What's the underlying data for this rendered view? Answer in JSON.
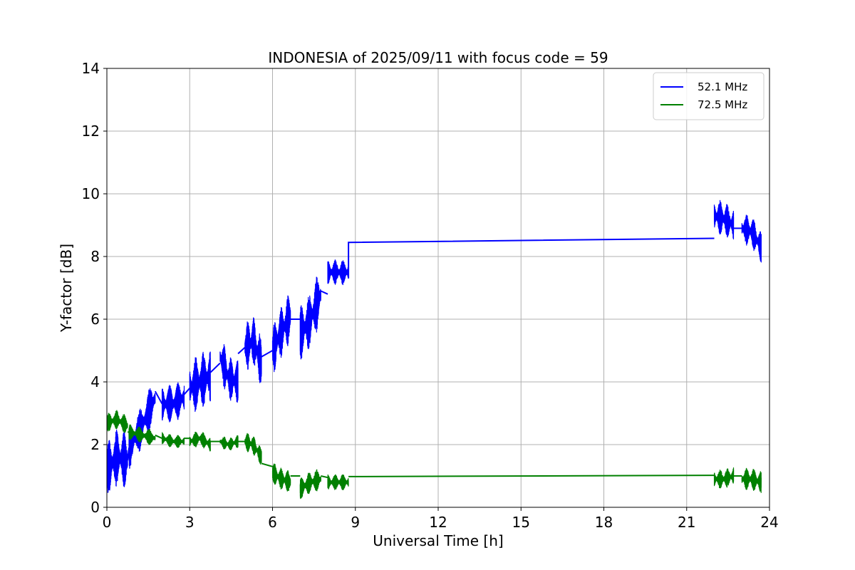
{
  "chart_data": {
    "type": "line",
    "title": "INDONESIA of 2025/09/11 with focus code = 59",
    "xlabel": "Universal Time [h]",
    "ylabel": "Y-factor [dB]",
    "xlim": [
      0,
      24
    ],
    "ylim": [
      0,
      14
    ],
    "xticks": [
      0,
      3,
      6,
      9,
      12,
      15,
      18,
      21,
      24
    ],
    "yticks": [
      0,
      2,
      4,
      6,
      8,
      10,
      12,
      14
    ],
    "xtick_labels": [
      "0",
      "3",
      "6",
      "9",
      "12",
      "15",
      "18",
      "21",
      "24"
    ],
    "ytick_labels": [
      "0",
      "2",
      "4",
      "6",
      "8",
      "10",
      "12",
      "14"
    ],
    "grid": true,
    "legend_position": "top-right",
    "series": [
      {
        "name": "52.1 MHz",
        "color": "#0000ff",
        "segments": [
          {
            "t0": 0.0,
            "t1": 0.75,
            "center": [
              1.2,
              1.6,
              1.5
            ],
            "amp": 0.9
          },
          {
            "t0": 0.8,
            "t1": 1.75,
            "center": [
              1.9,
              2.6,
              3.5
            ],
            "amp": 0.7
          },
          {
            "t0": 2.0,
            "t1": 2.8,
            "center": [
              3.3,
              3.3,
              3.5
            ],
            "amp": 0.6
          },
          {
            "t0": 3.0,
            "t1": 3.75,
            "center": [
              3.8,
              4.0,
              4.2
            ],
            "amp": 0.9
          },
          {
            "t0": 4.1,
            "t1": 4.75,
            "center": [
              4.8,
              4.1,
              4.0
            ],
            "amp": 0.7
          },
          {
            "t0": 5.0,
            "t1": 5.6,
            "center": [
              5.1,
              5.3,
              4.6
            ],
            "amp": 0.8
          },
          {
            "t0": 6.0,
            "t1": 6.65,
            "center": [
              5.0,
              5.6,
              6.1
            ],
            "amp": 0.8
          },
          {
            "t0": 7.0,
            "t1": 7.75,
            "center": [
              5.5,
              6.0,
              6.8
            ],
            "amp": 0.9
          },
          {
            "t0": 8.0,
            "t1": 8.75,
            "center": [
              7.5,
              7.5,
              7.5
            ],
            "amp": 0.4
          },
          {
            "t0": 22.0,
            "t1": 22.7,
            "center": [
              9.3,
              9.2,
              9.0
            ],
            "amp": 0.55
          },
          {
            "t0": 23.0,
            "t1": 23.7,
            "center": [
              8.9,
              8.8,
              8.3
            ],
            "amp": 0.5
          }
        ],
        "bridges": [
          {
            "x": [
              0.75,
              0.8
            ],
            "y": [
              1.5,
              1.9
            ]
          },
          {
            "x": [
              1.75,
              2.0
            ],
            "y": [
              3.7,
              3.3
            ]
          },
          {
            "x": [
              2.8,
              3.0
            ],
            "y": [
              3.6,
              3.8
            ]
          },
          {
            "x": [
              3.75,
              4.1
            ],
            "y": [
              4.3,
              4.6
            ]
          },
          {
            "x": [
              4.75,
              5.0
            ],
            "y": [
              4.9,
              5.1
            ]
          },
          {
            "x": [
              5.6,
              6.0
            ],
            "y": [
              4.8,
              5.0
            ]
          },
          {
            "x": [
              6.65,
              7.0
            ],
            "y": [
              6.0,
              6.0
            ]
          },
          {
            "x": [
              7.75,
              8.0
            ],
            "y": [
              6.9,
              6.8
            ]
          },
          {
            "x": [
              8.75,
              8.75,
              22.0
            ],
            "y": [
              7.3,
              8.45,
              8.58
            ]
          },
          {
            "x": [
              22.7,
              23.0
            ],
            "y": [
              8.9,
              8.9
            ]
          }
        ]
      },
      {
        "name": "72.5 MHz",
        "color": "#008000",
        "segments": [
          {
            "t0": 0.0,
            "t1": 0.75,
            "center": [
              2.7,
              2.8,
              2.6
            ],
            "amp": 0.3
          },
          {
            "t0": 0.8,
            "t1": 1.75,
            "center": [
              2.4,
              2.3,
              2.2
            ],
            "amp": 0.25
          },
          {
            "t0": 2.0,
            "t1": 2.8,
            "center": [
              2.2,
              2.1,
              2.1
            ],
            "amp": 0.2
          },
          {
            "t0": 3.0,
            "t1": 3.75,
            "center": [
              2.1,
              2.2,
              2.0
            ],
            "amp": 0.25
          },
          {
            "t0": 4.1,
            "t1": 4.75,
            "center": [
              2.1,
              2.0,
              2.1
            ],
            "amp": 0.2
          },
          {
            "t0": 5.0,
            "t1": 5.6,
            "center": [
              2.1,
              2.0,
              1.6
            ],
            "amp": 0.3
          },
          {
            "t0": 6.0,
            "t1": 6.65,
            "center": [
              1.1,
              0.9,
              0.8
            ],
            "amp": 0.35
          },
          {
            "t0": 7.0,
            "t1": 7.75,
            "center": [
              0.6,
              0.8,
              0.9
            ],
            "amp": 0.35
          },
          {
            "t0": 8.0,
            "t1": 8.75,
            "center": [
              0.8,
              0.8,
              0.8
            ],
            "amp": 0.25
          },
          {
            "t0": 22.0,
            "t1": 22.7,
            "center": [
              0.9,
              0.9,
              1.0
            ],
            "amp": 0.3
          },
          {
            "t0": 23.0,
            "t1": 23.7,
            "center": [
              0.9,
              0.9,
              0.8
            ],
            "amp": 0.35
          }
        ],
        "bridges": [
          {
            "x": [
              0.75,
              0.8
            ],
            "y": [
              2.4,
              2.4
            ]
          },
          {
            "x": [
              1.75,
              2.0
            ],
            "y": [
              2.3,
              2.2
            ]
          },
          {
            "x": [
              2.8,
              3.0
            ],
            "y": [
              2.2,
              2.2
            ]
          },
          {
            "x": [
              3.75,
              4.1
            ],
            "y": [
              2.1,
              2.1
            ]
          },
          {
            "x": [
              4.75,
              5.0
            ],
            "y": [
              2.1,
              2.1
            ]
          },
          {
            "x": [
              5.6,
              6.0
            ],
            "y": [
              1.4,
              1.3
            ]
          },
          {
            "x": [
              6.65,
              7.0
            ],
            "y": [
              1.0,
              1.0
            ]
          },
          {
            "x": [
              7.75,
              8.0
            ],
            "y": [
              1.0,
              0.95
            ]
          },
          {
            "x": [
              8.75,
              22.0
            ],
            "y": [
              0.98,
              1.02
            ]
          },
          {
            "x": [
              22.7,
              23.0
            ],
            "y": [
              1.0,
              1.0
            ]
          }
        ]
      }
    ]
  }
}
